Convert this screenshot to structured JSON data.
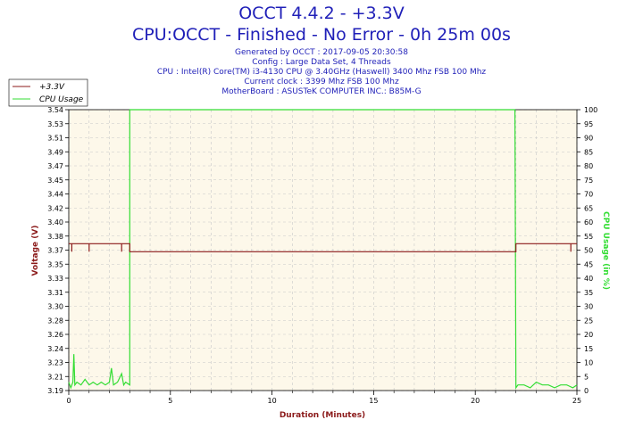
{
  "header": {
    "title": "OCCT 4.4.2 - +3.3V",
    "subtitle": "CPU:OCCT - Finished - No Error - 0h 25m 00s",
    "info_lines": [
      "Generated by OCCT : 2017-09-05 20:30:58",
      "Config : Large Data Set, 4 Threads",
      "CPU : Intel(R) Core(TM) i3-4130 CPU @ 3.40GHz (Haswell) 3400 Mhz FSB 100 Mhz",
      "Current clock : 3399 Mhz FSB 100 Mhz",
      "MotherBoard : ASUSTeK COMPUTER INC.: B85M-G"
    ]
  },
  "colors": {
    "voltage": "#8b1a1a",
    "cpu_usage": "#33dd33",
    "plot_bg": "#fdf8ea",
    "grid": "#c8c8c8",
    "x_label": "#8b1a1a",
    "y_left_label": "#8b1a1a",
    "y_right_label": "#33dd33"
  },
  "chart_data": {
    "type": "line",
    "xlabel": "Duration (Minutes)",
    "ylabel": "Voltage (V)",
    "y2label": "CPU Usage (in %)",
    "xlim": [
      0,
      25
    ],
    "ylim": [
      3.19,
      3.54
    ],
    "y2lim": [
      0,
      100
    ],
    "x_ticks": [
      0,
      5,
      10,
      15,
      20,
      25
    ],
    "y_ticks": [
      "3.19",
      "3.21",
      "3.23",
      "3.24",
      "3.26",
      "3.28",
      "3.30",
      "3.31",
      "3.33",
      "3.35",
      "3.37",
      "3.38",
      "3.40",
      "3.42",
      "3.44",
      "3.45",
      "3.47",
      "3.49",
      "3.51",
      "3.53",
      "3.54"
    ],
    "y2_ticks": [
      0,
      5,
      10,
      15,
      20,
      25,
      30,
      35,
      40,
      45,
      50,
      55,
      60,
      65,
      70,
      75,
      80,
      85,
      90,
      95,
      100
    ],
    "grid": true,
    "legend_position": "top-left",
    "series": [
      {
        "name": "+3.3V",
        "axis": "left",
        "x": [
          0,
          0.15,
          0.15,
          0.15,
          0.25,
          1.0,
          1.0,
          1.0,
          1.05,
          2.6,
          2.6,
          2.6,
          2.65,
          3.0,
          3.0,
          22.0,
          22.0,
          24.7,
          24.7,
          24.7,
          24.75,
          25
        ],
        "y": [
          3.373,
          3.373,
          3.363,
          3.373,
          3.373,
          3.373,
          3.363,
          3.373,
          3.373,
          3.373,
          3.363,
          3.373,
          3.373,
          3.373,
          3.363,
          3.363,
          3.373,
          3.373,
          3.363,
          3.373,
          3.373,
          3.373
        ]
      },
      {
        "name": "CPU Usage",
        "axis": "right",
        "x": [
          0,
          0.1,
          0.2,
          0.25,
          0.3,
          0.4,
          0.6,
          0.8,
          1.0,
          1.2,
          1.4,
          1.6,
          1.8,
          2.0,
          2.1,
          2.2,
          2.4,
          2.6,
          2.7,
          2.8,
          3.0,
          3.0,
          3.05,
          21.95,
          22.0,
          22.1,
          22.4,
          22.7,
          23.0,
          23.3,
          23.6,
          23.9,
          24.2,
          24.5,
          24.8,
          25
        ],
        "y": [
          3,
          1,
          3,
          13,
          2,
          3,
          2,
          4,
          2,
          3,
          2,
          3,
          2,
          3,
          8,
          2,
          3,
          6,
          2,
          3,
          2,
          100,
          100,
          100,
          1,
          2,
          2,
          1,
          3,
          2,
          2,
          1,
          2,
          2,
          1,
          2
        ]
      }
    ]
  }
}
